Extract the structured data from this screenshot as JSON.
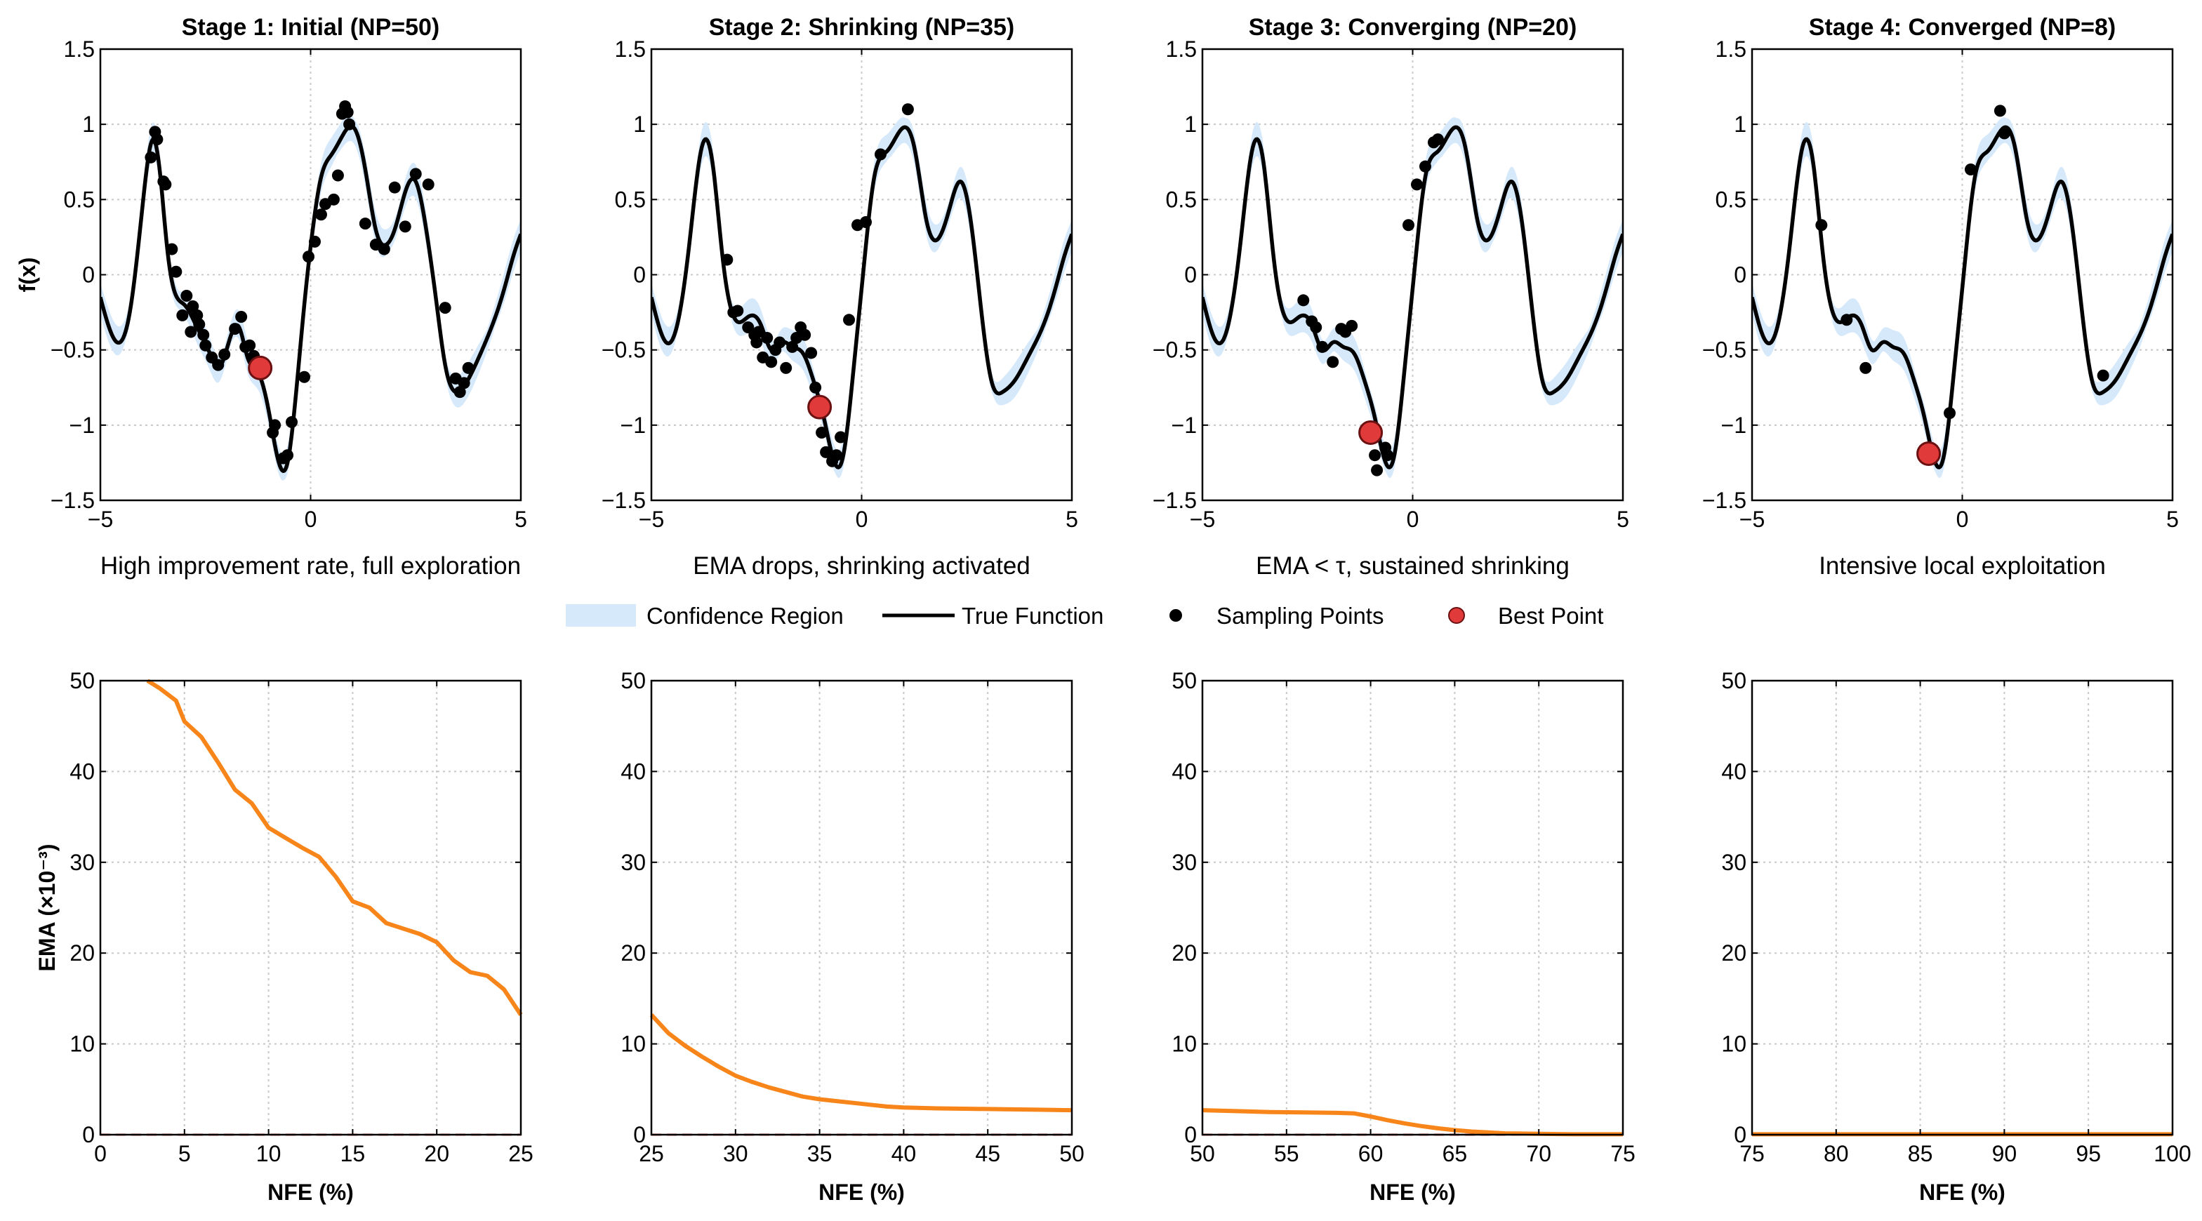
{
  "figure": {
    "background": "#ffffff",
    "colors": {
      "confidence": "#d6e9fb",
      "true_function": "#000000",
      "sampling": "#000000",
      "best_fill": "#e03a3a",
      "best_edge": "#6b1111",
      "ema": "#f7851a",
      "threshold": "#e04040",
      "grid": "#c8c8c8"
    },
    "legend": {
      "items": [
        {
          "label": "Confidence Region",
          "icon": "band"
        },
        {
          "label": "True Function",
          "icon": "line"
        },
        {
          "label": "Sampling Points",
          "icon": "dot"
        },
        {
          "label": "Best Point",
          "icon": "best"
        }
      ]
    }
  },
  "chart_data": [
    {
      "id": "stage1-function",
      "type": "line",
      "title": "Stage 1: Initial (NP=50)",
      "xlabel": "High improvement rate, full exploration",
      "ylabel": "f(x)",
      "xlim": [
        -5,
        5
      ],
      "ylim": [
        -1.5,
        1.5
      ],
      "xticks": [
        -5,
        0,
        5
      ],
      "xtick_labels": [
        "−5",
        "0",
        "5"
      ],
      "yticks": [
        1.5,
        1,
        0.5,
        0,
        -0.5,
        -1,
        -1.5
      ],
      "ytick_labels": [
        "1.5",
        "1",
        "0.5",
        "0",
        "−0.5",
        "−1",
        "−1.5"
      ],
      "confidence_halfwidth": 0.06,
      "true_function": {
        "x": [
          -5,
          -4.6,
          -4.3,
          -4.0,
          -3.85,
          -3.75,
          -3.6,
          -3.4,
          -3.25,
          -3.0,
          -2.7,
          -2.4,
          -2.2,
          -2.0,
          -1.7,
          -1.5,
          -1.25,
          -1.0,
          -0.8,
          -0.55,
          -0.35,
          -0.15,
          0.05,
          0.25,
          0.5,
          0.75,
          1.05,
          1.3,
          1.55,
          1.8,
          2.0,
          2.25,
          2.5,
          2.75,
          3.0,
          3.2,
          3.45,
          3.7,
          4.0,
          4.3,
          4.6,
          4.85,
          5.0
        ],
        "y": [
          -0.15,
          -0.45,
          -0.25,
          0.45,
          0.8,
          0.9,
          0.72,
          0.15,
          -0.1,
          -0.2,
          -0.35,
          -0.52,
          -0.62,
          -0.5,
          -0.35,
          -0.55,
          -0.65,
          -0.9,
          -1.2,
          -1.25,
          -0.8,
          -0.2,
          0.3,
          0.65,
          0.8,
          0.92,
          0.97,
          0.7,
          0.3,
          0.2,
          0.3,
          0.55,
          0.62,
          0.3,
          -0.2,
          -0.6,
          -0.78,
          -0.72,
          -0.55,
          -0.35,
          -0.1,
          0.15,
          0.27
        ]
      },
      "sampling_points": {
        "x": [
          -3.8,
          -3.7,
          -3.65,
          -3.5,
          -3.45,
          -3.3,
          -3.2,
          -3.05,
          -2.95,
          -2.85,
          -2.8,
          -2.7,
          -2.65,
          -2.55,
          -2.5,
          -2.35,
          -2.2,
          -2.05,
          -1.8,
          -1.65,
          -1.55,
          -1.45,
          -1.35,
          -1.2,
          -0.9,
          -0.85,
          -0.65,
          -0.55,
          -0.45,
          -0.15,
          -0.05,
          0.1,
          0.25,
          0.35,
          0.55,
          0.65,
          0.75,
          0.82,
          0.88,
          0.92,
          1.3,
          1.55,
          1.75,
          2.0,
          2.25,
          2.5,
          2.8,
          3.2,
          3.45,
          3.55,
          3.65,
          3.75
        ],
        "y": [
          0.78,
          0.95,
          0.9,
          0.62,
          0.6,
          0.17,
          0.02,
          -0.27,
          -0.14,
          -0.38,
          -0.21,
          -0.27,
          -0.33,
          -0.4,
          -0.47,
          -0.55,
          -0.6,
          -0.53,
          -0.36,
          -0.28,
          -0.48,
          -0.47,
          -0.54,
          -0.63,
          -1.05,
          -1.0,
          -1.22,
          -1.2,
          -0.98,
          -0.68,
          0.12,
          0.22,
          0.4,
          0.47,
          0.5,
          0.66,
          1.07,
          1.12,
          1.08,
          1.0,
          0.34,
          0.2,
          0.17,
          0.58,
          0.32,
          0.67,
          0.6,
          -0.22,
          -0.69,
          -0.78,
          -0.72,
          -0.62
        ]
      },
      "best_point": {
        "x": -1.2,
        "y": -0.62
      }
    },
    {
      "id": "stage2-function",
      "type": "line",
      "title": "Stage 2: Shrinking (NP=35)",
      "xlabel": "EMA drops, shrinking activated",
      "xlim": [
        -5,
        5
      ],
      "ylim": [
        -1.5,
        1.5
      ],
      "xticks": [
        -5,
        0,
        5
      ],
      "xtick_labels": [
        "−5",
        "0",
        "5"
      ],
      "yticks": [
        1.5,
        1,
        0.5,
        0,
        -0.5,
        -1,
        -1.5
      ],
      "ytick_labels": [
        "1.5",
        "1",
        "0.5",
        "0",
        "−0.5",
        "−1",
        "−1.5"
      ],
      "confidence_halfwidth": 0.06,
      "true_function": {
        "x": [
          -5,
          -4.65,
          -4.4,
          -4.1,
          -3.8,
          -3.55,
          -3.3,
          -3.0,
          -2.7,
          -2.4,
          -2.15,
          -1.9,
          -1.65,
          -1.4,
          -1.15,
          -0.9,
          -0.7,
          -0.45,
          -0.2,
          0.05,
          0.3,
          0.6,
          0.85,
          1.05,
          1.25,
          1.55,
          1.85,
          2.1,
          2.35,
          2.6,
          2.85,
          3.1,
          3.35,
          3.65,
          3.95,
          4.3,
          4.6,
          4.85,
          5.0
        ],
        "y": [
          -0.15,
          -0.45,
          -0.35,
          0.2,
          0.85,
          0.75,
          0.1,
          -0.3,
          -0.28,
          -0.33,
          -0.5,
          -0.45,
          -0.48,
          -0.52,
          -0.7,
          -0.95,
          -1.2,
          -1.22,
          -0.65,
          0.05,
          0.65,
          0.82,
          0.93,
          0.98,
          0.85,
          0.35,
          0.25,
          0.45,
          0.62,
          0.35,
          -0.25,
          -0.72,
          -0.78,
          -0.7,
          -0.55,
          -0.35,
          -0.1,
          0.15,
          0.27
        ]
      },
      "sampling_points": {
        "x": [
          -3.2,
          -3.05,
          -2.95,
          -2.7,
          -2.55,
          -2.5,
          -2.45,
          -2.35,
          -2.25,
          -2.15,
          -2.05,
          -1.95,
          -1.8,
          -1.65,
          -1.55,
          -1.45,
          -1.35,
          -1.2,
          -1.1,
          -0.95,
          -0.85,
          -0.7,
          -0.6,
          -0.5,
          -0.3,
          -0.1,
          0.1,
          0.45,
          1.1
        ],
        "y": [
          0.1,
          -0.25,
          -0.24,
          -0.35,
          -0.4,
          -0.45,
          -0.38,
          -0.55,
          -0.42,
          -0.58,
          -0.5,
          -0.45,
          -0.62,
          -0.48,
          -0.42,
          -0.35,
          -0.4,
          -0.52,
          -0.75,
          -1.05,
          -1.18,
          -1.24,
          -1.2,
          -1.08,
          -0.3,
          0.33,
          0.35,
          0.8,
          1.1
        ]
      },
      "best_point": {
        "x": -1.0,
        "y": -0.88
      }
    },
    {
      "id": "stage3-function",
      "type": "line",
      "title": "Stage 3: Converging (NP=20)",
      "xlabel": "EMA < τ, sustained shrinking",
      "xlim": [
        -5,
        5
      ],
      "ylim": [
        -1.5,
        1.5
      ],
      "xticks": [
        -5,
        0,
        5
      ],
      "xtick_labels": [
        "−5",
        "0",
        "5"
      ],
      "yticks": [
        1.5,
        1,
        0.5,
        0,
        -0.5,
        -1,
        -1.5
      ],
      "ytick_labels": [
        "1.5",
        "1",
        "0.5",
        "0",
        "−0.5",
        "−1",
        "−1.5"
      ],
      "confidence_halfwidth": 0.06,
      "true_function": {
        "x": [
          -5,
          -4.65,
          -4.4,
          -4.1,
          -3.8,
          -3.55,
          -3.3,
          -3.0,
          -2.7,
          -2.4,
          -2.15,
          -1.9,
          -1.65,
          -1.4,
          -1.15,
          -0.9,
          -0.7,
          -0.45,
          -0.2,
          0.05,
          0.3,
          0.6,
          0.85,
          1.05,
          1.25,
          1.55,
          1.85,
          2.1,
          2.35,
          2.6,
          2.85,
          3.1,
          3.35,
          3.65,
          3.95,
          4.3,
          4.6,
          4.85,
          5.0
        ],
        "y": [
          -0.15,
          -0.45,
          -0.35,
          0.2,
          0.85,
          0.75,
          0.1,
          -0.3,
          -0.28,
          -0.33,
          -0.5,
          -0.45,
          -0.48,
          -0.52,
          -0.7,
          -0.95,
          -1.2,
          -1.22,
          -0.65,
          0.05,
          0.65,
          0.82,
          0.93,
          0.98,
          0.85,
          0.35,
          0.25,
          0.45,
          0.62,
          0.35,
          -0.25,
          -0.72,
          -0.78,
          -0.7,
          -0.55,
          -0.35,
          -0.1,
          0.15,
          0.27
        ]
      },
      "sampling_points": {
        "x": [
          -2.6,
          -2.4,
          -2.3,
          -2.15,
          -1.9,
          -1.7,
          -1.6,
          -1.45,
          -0.9,
          -0.85,
          -0.65,
          -0.6,
          -0.1,
          0.1,
          0.3,
          0.5,
          0.6
        ],
        "y": [
          -0.17,
          -0.31,
          -0.35,
          -0.48,
          -0.58,
          -0.36,
          -0.38,
          -0.34,
          -1.2,
          -1.3,
          -1.15,
          -1.2,
          0.33,
          0.6,
          0.72,
          0.88,
          0.9
        ]
      },
      "best_point": {
        "x": -1.0,
        "y": -1.05
      }
    },
    {
      "id": "stage4-function",
      "type": "line",
      "title": "Stage 4: Converged (NP=8)",
      "xlabel": "Intensive local exploitation",
      "xlim": [
        -5,
        5
      ],
      "ylim": [
        -1.5,
        1.5
      ],
      "xticks": [
        -5,
        0,
        5
      ],
      "xtick_labels": [
        "−5",
        "0",
        "5"
      ],
      "yticks": [
        1.5,
        1,
        0.5,
        0,
        -0.5,
        -1,
        -1.5
      ],
      "ytick_labels": [
        "1.5",
        "1",
        "0.5",
        "0",
        "−0.5",
        "−1",
        "−1.5"
      ],
      "confidence_halfwidth": 0.06,
      "true_function": {
        "x": [
          -5,
          -4.65,
          -4.4,
          -4.1,
          -3.8,
          -3.55,
          -3.3,
          -3.0,
          -2.7,
          -2.4,
          -2.15,
          -1.9,
          -1.65,
          -1.4,
          -1.15,
          -0.9,
          -0.7,
          -0.45,
          -0.2,
          0.05,
          0.3,
          0.6,
          0.85,
          1.05,
          1.25,
          1.55,
          1.85,
          2.1,
          2.35,
          2.6,
          2.85,
          3.1,
          3.35,
          3.65,
          3.95,
          4.3,
          4.6,
          4.85,
          5.0
        ],
        "y": [
          -0.15,
          -0.45,
          -0.35,
          0.2,
          0.85,
          0.75,
          0.1,
          -0.3,
          -0.28,
          -0.33,
          -0.5,
          -0.45,
          -0.48,
          -0.52,
          -0.7,
          -0.95,
          -1.2,
          -1.22,
          -0.65,
          0.05,
          0.65,
          0.82,
          0.93,
          0.98,
          0.85,
          0.35,
          0.25,
          0.45,
          0.62,
          0.35,
          -0.25,
          -0.72,
          -0.78,
          -0.7,
          -0.55,
          -0.35,
          -0.1,
          0.15,
          0.27
        ]
      },
      "sampling_points": {
        "x": [
          -3.35,
          -2.75,
          -2.3,
          -0.3,
          0.2,
          0.9,
          1.0,
          3.35
        ],
        "y": [
          0.33,
          -0.3,
          -0.62,
          -0.92,
          0.7,
          1.09,
          0.94,
          -0.67
        ]
      },
      "best_point": {
        "x": -0.8,
        "y": -1.19
      }
    },
    {
      "id": "stage1-ema",
      "type": "line",
      "xlabel": "NFE (%)",
      "ylabel": "EMA (×10⁻³)",
      "xlim": [
        0,
        25
      ],
      "ylim": [
        0,
        50
      ],
      "xticks": [
        0,
        5,
        10,
        15,
        20,
        25
      ],
      "yticks": [
        0,
        10,
        20,
        30,
        40,
        50
      ],
      "threshold": 0,
      "ema": {
        "x": [
          2.8,
          3.5,
          4.5,
          5.0,
          6.0,
          7.0,
          8.0,
          9.0,
          10.0,
          11.0,
          12.0,
          13.0,
          14.0,
          15.0,
          16.0,
          17.0,
          18.0,
          19.0,
          20.0,
          21.0,
          22.0,
          23.0,
          24.0,
          25.0
        ],
        "y": [
          50.0,
          49.2,
          47.8,
          45.5,
          43.8,
          41.0,
          38.0,
          36.5,
          33.8,
          32.7,
          31.6,
          30.6,
          28.4,
          25.7,
          25.0,
          23.3,
          22.7,
          22.1,
          21.2,
          19.2,
          17.9,
          17.5,
          16.0,
          13.2
        ]
      }
    },
    {
      "id": "stage2-ema",
      "type": "line",
      "xlabel": "NFE (%)",
      "xlim": [
        25,
        50
      ],
      "ylim": [
        0,
        50
      ],
      "xticks": [
        25,
        30,
        35,
        40,
        45,
        50
      ],
      "yticks": [
        0,
        10,
        20,
        30,
        40,
        50
      ],
      "threshold": 0,
      "ema": {
        "x": [
          25,
          26,
          27,
          28,
          29,
          30,
          31,
          32,
          33,
          34,
          35,
          36,
          37,
          38,
          39,
          40,
          42,
          44,
          46,
          48,
          50
        ],
        "y": [
          13.2,
          11.2,
          9.8,
          8.6,
          7.5,
          6.5,
          5.8,
          5.2,
          4.7,
          4.2,
          3.9,
          3.7,
          3.5,
          3.3,
          3.1,
          3.0,
          2.9,
          2.85,
          2.8,
          2.75,
          2.7
        ]
      }
    },
    {
      "id": "stage3-ema",
      "type": "line",
      "xlabel": "NFE (%)",
      "xlim": [
        50,
        75
      ],
      "ylim": [
        0,
        50
      ],
      "xticks": [
        50,
        55,
        60,
        65,
        70,
        75
      ],
      "yticks": [
        0,
        10,
        20,
        30,
        40,
        50
      ],
      "threshold": 0,
      "ema": {
        "x": [
          50,
          52,
          54,
          56,
          58,
          59,
          60,
          61,
          62,
          63,
          64,
          65,
          66,
          67,
          68,
          70,
          72,
          75
        ],
        "y": [
          2.7,
          2.6,
          2.5,
          2.45,
          2.4,
          2.35,
          2.0,
          1.6,
          1.25,
          0.95,
          0.7,
          0.5,
          0.35,
          0.25,
          0.15,
          0.1,
          0.05,
          0.05
        ]
      }
    },
    {
      "id": "stage4-ema",
      "type": "line",
      "xlabel": "NFE (%)",
      "xlim": [
        75,
        100
      ],
      "ylim": [
        0,
        50
      ],
      "xticks": [
        75,
        80,
        85,
        90,
        95,
        100
      ],
      "yticks": [
        0,
        10,
        20,
        30,
        40,
        50
      ],
      "threshold": 0,
      "ema": {
        "x": [
          75,
          80,
          85,
          90,
          95,
          100
        ],
        "y": [
          0.05,
          0.05,
          0.05,
          0.05,
          0.05,
          0.05
        ]
      }
    }
  ]
}
